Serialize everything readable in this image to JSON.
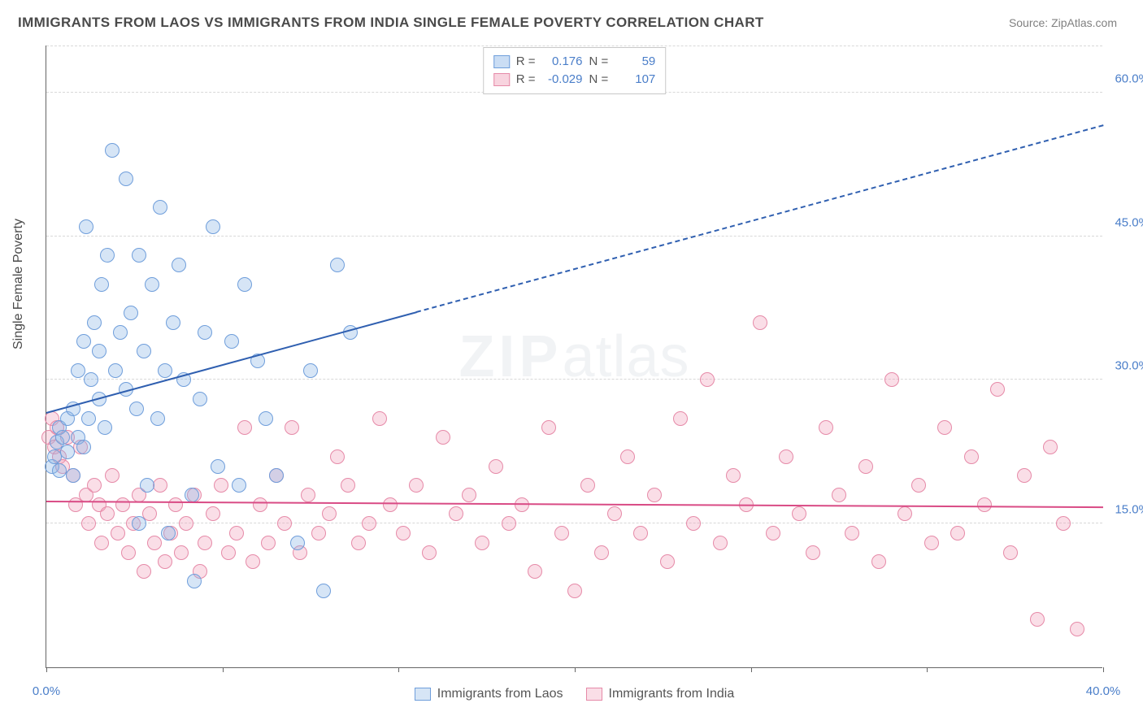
{
  "title": "IMMIGRANTS FROM LAOS VS IMMIGRANTS FROM INDIA SINGLE FEMALE POVERTY CORRELATION CHART",
  "source": "Source: ZipAtlas.com",
  "ylabel": "Single Female Poverty",
  "watermark_zip": "ZIP",
  "watermark_atlas": "atlas",
  "chart": {
    "type": "scatter",
    "xlim": [
      0,
      40
    ],
    "ylim": [
      0,
      65
    ],
    "x_ticks": [
      0,
      6.67,
      13.33,
      20,
      26.67,
      33.33,
      40
    ],
    "x_tick_labels": [
      "0.0%",
      "",
      "",
      "",
      "",
      "",
      "40.0%"
    ],
    "y_gridlines": [
      15,
      30,
      45,
      60
    ],
    "y_tick_labels": [
      "15.0%",
      "30.0%",
      "45.0%",
      "60.0%"
    ],
    "background_color": "#ffffff",
    "grid_color": "#d8d8d8",
    "axis_color": "#666666",
    "series": {
      "laos": {
        "label": "Immigrants from Laos",
        "fill": "rgba(138,180,230,0.35)",
        "stroke": "#6f9edb",
        "marker_radius": 9,
        "R": "0.176",
        "N": "59",
        "trend": {
          "x1": 0,
          "y1": 26.5,
          "x2": 14,
          "y2": 37,
          "extend_x2": 40,
          "extend_y2": 56.5,
          "color": "#2f5fb0"
        },
        "points": [
          [
            0.2,
            21
          ],
          [
            0.3,
            22
          ],
          [
            0.4,
            23.5
          ],
          [
            0.5,
            20.5
          ],
          [
            0.5,
            25
          ],
          [
            0.6,
            24
          ],
          [
            0.8,
            22.5
          ],
          [
            0.8,
            26
          ],
          [
            1.0,
            20
          ],
          [
            1.0,
            27
          ],
          [
            1.2,
            31
          ],
          [
            1.2,
            24
          ],
          [
            1.4,
            34
          ],
          [
            1.4,
            23
          ],
          [
            1.5,
            46
          ],
          [
            1.6,
            26
          ],
          [
            1.7,
            30
          ],
          [
            1.8,
            36
          ],
          [
            2.0,
            28
          ],
          [
            2.0,
            33
          ],
          [
            2.1,
            40
          ],
          [
            2.2,
            25
          ],
          [
            2.3,
            43
          ],
          [
            2.5,
            54
          ],
          [
            2.6,
            31
          ],
          [
            2.8,
            35
          ],
          [
            3.0,
            51
          ],
          [
            3.0,
            29
          ],
          [
            3.2,
            37
          ],
          [
            3.4,
            27
          ],
          [
            3.5,
            43
          ],
          [
            3.5,
            15
          ],
          [
            3.7,
            33
          ],
          [
            3.8,
            19
          ],
          [
            4.0,
            40
          ],
          [
            4.2,
            26
          ],
          [
            4.3,
            48
          ],
          [
            4.5,
            31
          ],
          [
            4.6,
            14
          ],
          [
            4.8,
            36
          ],
          [
            5.0,
            42
          ],
          [
            5.2,
            30
          ],
          [
            5.5,
            18
          ],
          [
            5.6,
            9
          ],
          [
            5.8,
            28
          ],
          [
            6.0,
            35
          ],
          [
            6.3,
            46
          ],
          [
            6.5,
            21
          ],
          [
            7.0,
            34
          ],
          [
            7.3,
            19
          ],
          [
            7.5,
            40
          ],
          [
            8.0,
            32
          ],
          [
            8.3,
            26
          ],
          [
            8.7,
            20
          ],
          [
            9.5,
            13
          ],
          [
            10.0,
            31
          ],
          [
            10.5,
            8
          ],
          [
            11.0,
            42
          ],
          [
            11.5,
            35
          ]
        ]
      },
      "india": {
        "label": "Immigrants from India",
        "fill": "rgba(240,160,185,0.35)",
        "stroke": "#e68aa8",
        "marker_radius": 9,
        "R": "-0.029",
        "N": "107",
        "trend": {
          "x1": 0,
          "y1": 17.2,
          "x2": 40,
          "y2": 16.6,
          "color": "#d94b85"
        },
        "points": [
          [
            0.1,
            24
          ],
          [
            0.2,
            26
          ],
          [
            0.3,
            23
          ],
          [
            0.4,
            25
          ],
          [
            0.5,
            22
          ],
          [
            0.6,
            21
          ],
          [
            0.8,
            24
          ],
          [
            1.0,
            20
          ],
          [
            1.1,
            17
          ],
          [
            1.3,
            23
          ],
          [
            1.5,
            18
          ],
          [
            1.6,
            15
          ],
          [
            1.8,
            19
          ],
          [
            2.0,
            17
          ],
          [
            2.1,
            13
          ],
          [
            2.3,
            16
          ],
          [
            2.5,
            20
          ],
          [
            2.7,
            14
          ],
          [
            2.9,
            17
          ],
          [
            3.1,
            12
          ],
          [
            3.3,
            15
          ],
          [
            3.5,
            18
          ],
          [
            3.7,
            10
          ],
          [
            3.9,
            16
          ],
          [
            4.1,
            13
          ],
          [
            4.3,
            19
          ],
          [
            4.5,
            11
          ],
          [
            4.7,
            14
          ],
          [
            4.9,
            17
          ],
          [
            5.1,
            12
          ],
          [
            5.3,
            15
          ],
          [
            5.6,
            18
          ],
          [
            5.8,
            10
          ],
          [
            6.0,
            13
          ],
          [
            6.3,
            16
          ],
          [
            6.6,
            19
          ],
          [
            6.9,
            12
          ],
          [
            7.2,
            14
          ],
          [
            7.5,
            25
          ],
          [
            7.8,
            11
          ],
          [
            8.1,
            17
          ],
          [
            8.4,
            13
          ],
          [
            8.7,
            20
          ],
          [
            9.0,
            15
          ],
          [
            9.3,
            25
          ],
          [
            9.6,
            12
          ],
          [
            9.9,
            18
          ],
          [
            10.3,
            14
          ],
          [
            10.7,
            16
          ],
          [
            11.0,
            22
          ],
          [
            11.4,
            19
          ],
          [
            11.8,
            13
          ],
          [
            12.2,
            15
          ],
          [
            12.6,
            26
          ],
          [
            13.0,
            17
          ],
          [
            13.5,
            14
          ],
          [
            14.0,
            19
          ],
          [
            14.5,
            12
          ],
          [
            15.0,
            24
          ],
          [
            15.5,
            16
          ],
          [
            16.0,
            18
          ],
          [
            16.5,
            13
          ],
          [
            17.0,
            21
          ],
          [
            17.5,
            15
          ],
          [
            18.0,
            17
          ],
          [
            18.5,
            10
          ],
          [
            19.0,
            25
          ],
          [
            19.5,
            14
          ],
          [
            20.0,
            8
          ],
          [
            20.5,
            19
          ],
          [
            21.0,
            12
          ],
          [
            21.5,
            16
          ],
          [
            22.0,
            22
          ],
          [
            22.5,
            14
          ],
          [
            23.0,
            18
          ],
          [
            23.5,
            11
          ],
          [
            24.0,
            26
          ],
          [
            24.5,
            15
          ],
          [
            25.0,
            30
          ],
          [
            25.5,
            13
          ],
          [
            26.0,
            20
          ],
          [
            26.5,
            17
          ],
          [
            27.0,
            36
          ],
          [
            27.5,
            14
          ],
          [
            28.0,
            22
          ],
          [
            28.5,
            16
          ],
          [
            29.0,
            12
          ],
          [
            29.5,
            25
          ],
          [
            30.0,
            18
          ],
          [
            30.5,
            14
          ],
          [
            31.0,
            21
          ],
          [
            31.5,
            11
          ],
          [
            32.0,
            30
          ],
          [
            32.5,
            16
          ],
          [
            33.0,
            19
          ],
          [
            33.5,
            13
          ],
          [
            34.0,
            25
          ],
          [
            34.5,
            14
          ],
          [
            35.0,
            22
          ],
          [
            35.5,
            17
          ],
          [
            36.0,
            29
          ],
          [
            36.5,
            12
          ],
          [
            37.0,
            20
          ],
          [
            37.5,
            5
          ],
          [
            38.0,
            23
          ],
          [
            38.5,
            15
          ],
          [
            39.0,
            4
          ]
        ]
      }
    }
  },
  "legend_top": {
    "rows": [
      {
        "swatch_fill": "rgba(138,180,230,0.45)",
        "swatch_stroke": "#6f9edb",
        "R_label": "R =",
        "R": "0.176",
        "N_label": "N =",
        "N": "59"
      },
      {
        "swatch_fill": "rgba(240,160,185,0.45)",
        "swatch_stroke": "#e68aa8",
        "R_label": "R =",
        "R": "-0.029",
        "N_label": "N =",
        "N": "107"
      }
    ]
  }
}
